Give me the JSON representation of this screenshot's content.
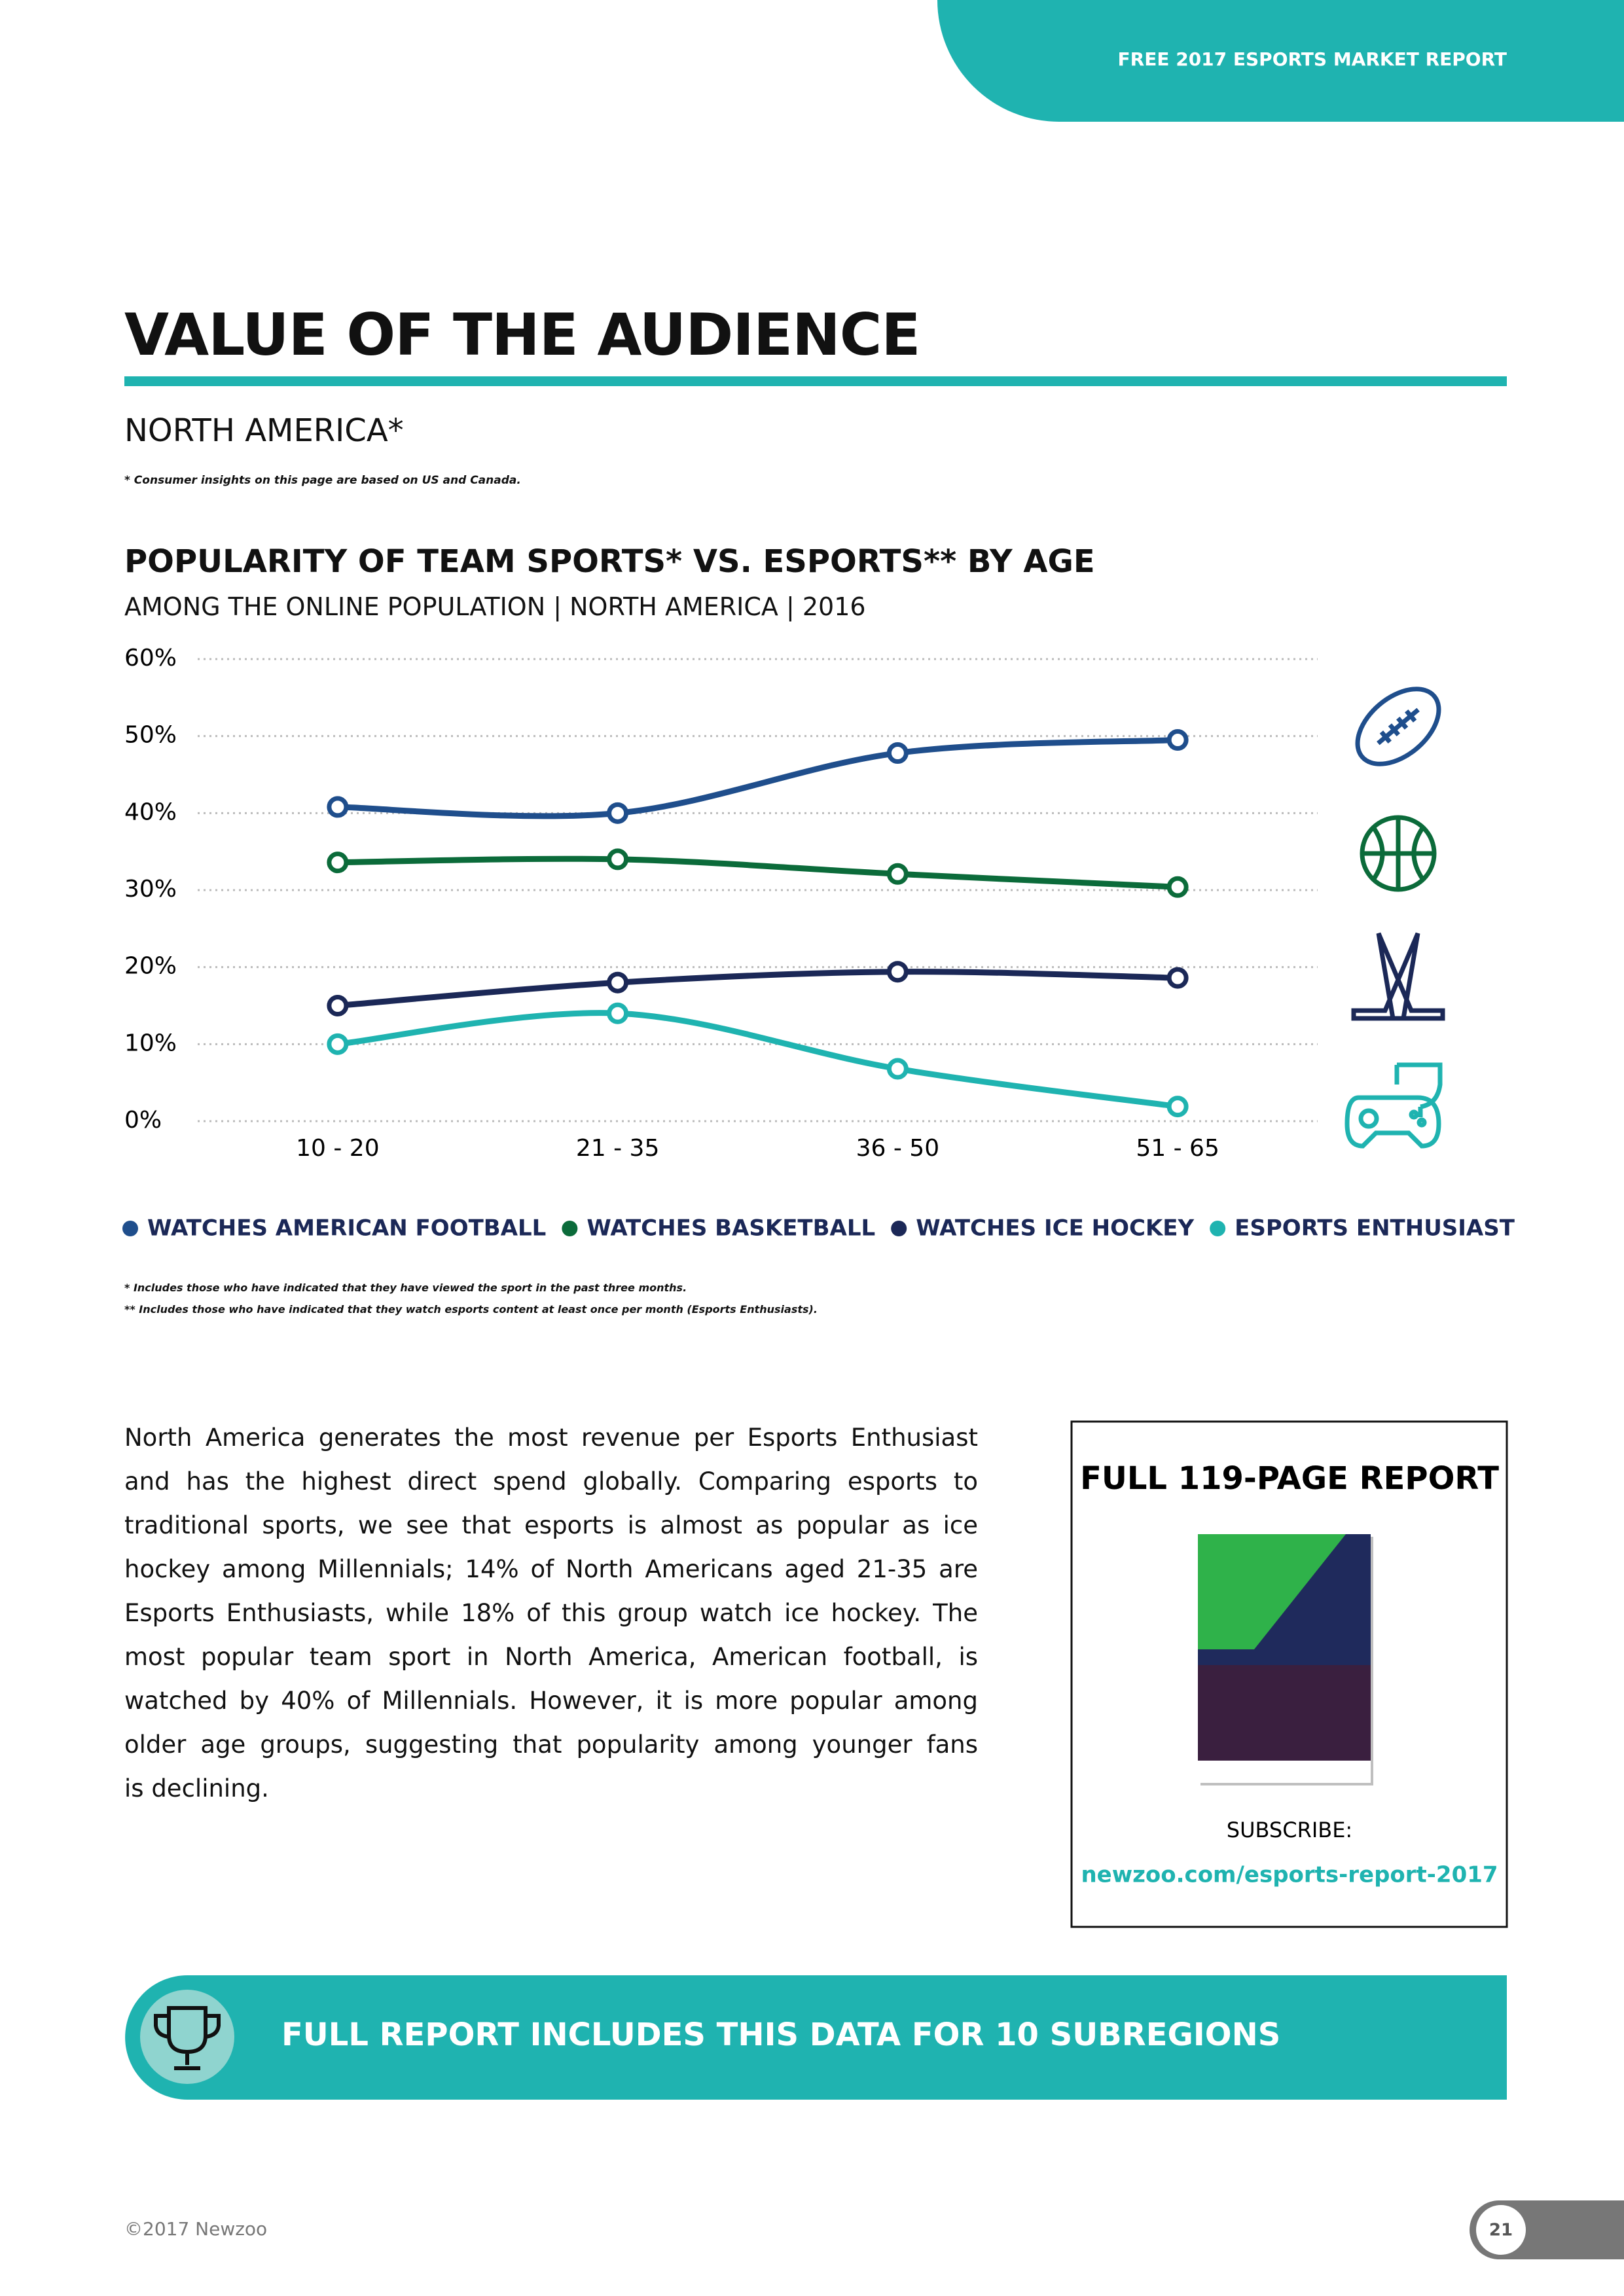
{
  "header": {
    "tag": "FREE 2017 ESPORTS MARKET REPORT"
  },
  "page": {
    "title": "VALUE OF THE AUDIENCE",
    "region": "NORTH AMERICA*",
    "region_note": "* Consumer insights on this page are based on US and Canada."
  },
  "chart_data": {
    "type": "line",
    "title": "POPULARITY OF TEAM SPORTS* VS. ESPORTS** BY AGE",
    "subtitle": "AMONG THE ONLINE POPULATION | NORTH AMERICA  | 2016",
    "categories": [
      "10 - 20",
      "21 - 35",
      "36 - 50",
      "51 - 65"
    ],
    "series": [
      {
        "name": "WATCHES AMERICAN FOOTBALL",
        "color": "#1f4e8c",
        "values": [
          40.8,
          40,
          47.8,
          49.5
        ]
      },
      {
        "name": "WATCHES BASKETBALL",
        "color": "#0b6b3a",
        "values": [
          33.6,
          34,
          32.1,
          30.4
        ]
      },
      {
        "name": "WATCHES ICE HOCKEY",
        "color": "#1b2857",
        "values": [
          15,
          18,
          19.4,
          18.6
        ]
      },
      {
        "name": "ESPORTS ENTHUSIAST",
        "color": "#1fb3b0",
        "values": [
          10,
          14,
          6.8,
          1.9
        ]
      }
    ],
    "ylim": [
      0,
      60
    ],
    "yticks": [
      {
        "value": 0,
        "label": "0%"
      },
      {
        "value": 10,
        "label": "10%"
      },
      {
        "value": 20,
        "label": "20%"
      },
      {
        "value": 30,
        "label": "30%"
      },
      {
        "value": 40,
        "label": "40%"
      },
      {
        "value": 50,
        "label": "50%"
      },
      {
        "value": 60,
        "label": "60%"
      }
    ],
    "grid": true,
    "legend": "bottom",
    "footnotes": [
      "* Includes those who have indicated that they have viewed the sport in the past three months.",
      "** Includes those who have indicated that they watch esports content at least once per month (Esports Enthusiasts)."
    ]
  },
  "body": {
    "lines": [
      "North America generates the most revenue per Esports Enthusiast",
      "and has the highest direct spend globally. Comparing esports to",
      "traditional sports, we see that esports is almost as popular as ice",
      "hockey among Millennials; 14% of North Americans aged 21-35 are",
      "Esports Enthusiasts, while 18% of this group watch ice hockey. The",
      "most popular team sport in North America, American football, is",
      "watched by 40% of Millennials. However, it is more popular among",
      "older age groups, suggesting that popularity among younger fans",
      "is declining."
    ]
  },
  "promo": {
    "title": "FULL 119-PAGE REPORT",
    "subscribe": "SUBSCRIBE:",
    "link": "newzoo.com/esports-report-2017"
  },
  "banner": {
    "text": "FULL REPORT INCLUDES THIS DATA FOR 10 SUBREGIONS"
  },
  "footer": {
    "copyright": "©2017 Newzoo",
    "page_number": "21"
  }
}
